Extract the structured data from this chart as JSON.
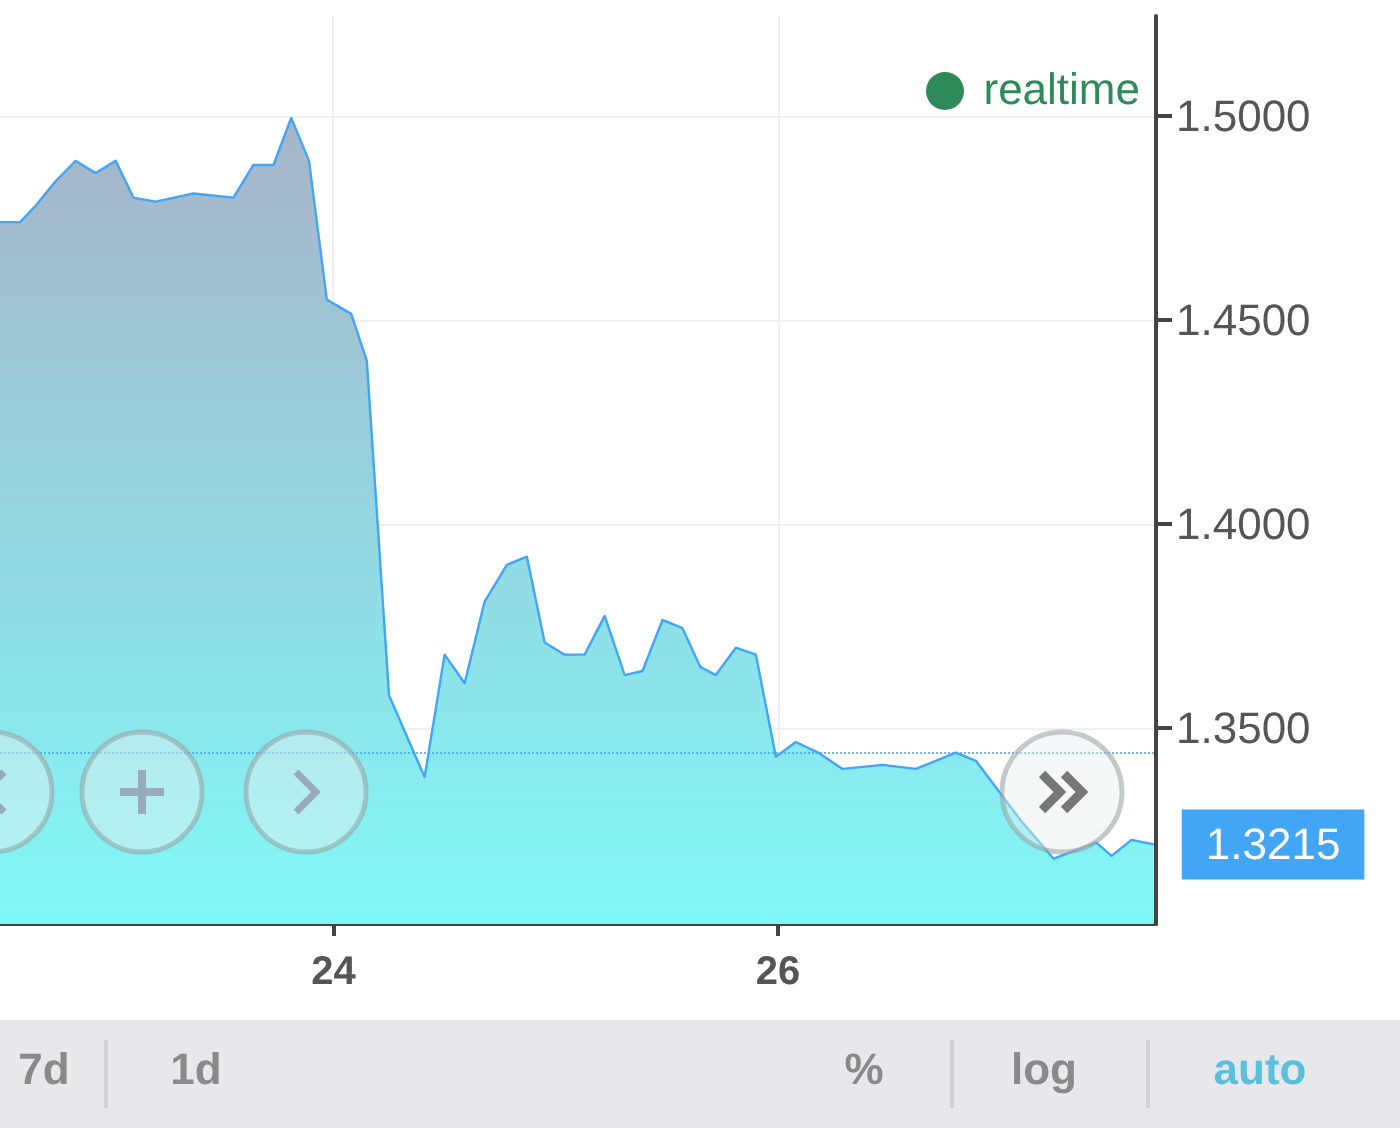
{
  "chart_data": {
    "type": "area",
    "x": [
      22.5,
      22.59,
      22.66,
      22.75,
      22.84,
      22.93,
      23.02,
      23.1,
      23.2,
      23.37,
      23.55,
      23.64,
      23.73,
      23.81,
      23.89,
      23.97,
      24.08,
      24.15,
      24.25,
      24.41,
      24.5,
      24.59,
      24.68,
      24.78,
      24.87,
      24.95,
      25.04,
      25.13,
      25.22,
      25.31,
      25.39,
      25.48,
      25.57,
      25.65,
      25.72,
      25.81,
      25.9,
      25.99,
      26.08,
      26.18,
      26.29,
      26.47,
      26.62,
      26.8,
      26.89,
      27.09,
      27.24,
      27.43,
      27.5,
      27.59,
      27.69
    ],
    "series": [
      {
        "color": "#42a5f5",
        "values": [
          1.474,
          1.474,
          1.478,
          1.484,
          1.489,
          1.486,
          1.489,
          1.48,
          1.479,
          1.481,
          1.48,
          1.488,
          1.488,
          1.4995,
          1.489,
          1.455,
          1.4515,
          1.44,
          1.358,
          1.338,
          1.368,
          1.361,
          1.381,
          1.39,
          1.392,
          1.371,
          1.368,
          1.368,
          1.3775,
          1.363,
          1.364,
          1.3765,
          1.3745,
          1.365,
          1.363,
          1.3697,
          1.368,
          1.343,
          1.3466,
          1.344,
          1.34,
          1.341,
          1.34,
          1.344,
          1.342,
          1.3275,
          1.318,
          1.322,
          1.3187,
          1.3226,
          1.3215
        ]
      }
    ],
    "xlim": [
      22.5,
      27.7
    ],
    "xticks": [
      24,
      26
    ],
    "ylim": [
      1.302,
      1.5245
    ],
    "yticks": [
      {
        "value": 1.35,
        "label": "1.3500"
      },
      {
        "value": 1.4,
        "label": "1.4000"
      },
      {
        "value": 1.45,
        "label": "1.4500"
      },
      {
        "value": 1.5,
        "label": "1.5000"
      }
    ],
    "ref_lines": [
      {
        "axis": "y",
        "value": 1.3441,
        "color": "#42a5f5",
        "line_style": "dotted"
      }
    ],
    "annotations": [
      {
        "text": "1.3215",
        "x": 27.69,
        "y": 1.3215
      },
      "realtime",
      "7d",
      "1d",
      "%",
      "log",
      "auto"
    ],
    "grid": true
  }
}
